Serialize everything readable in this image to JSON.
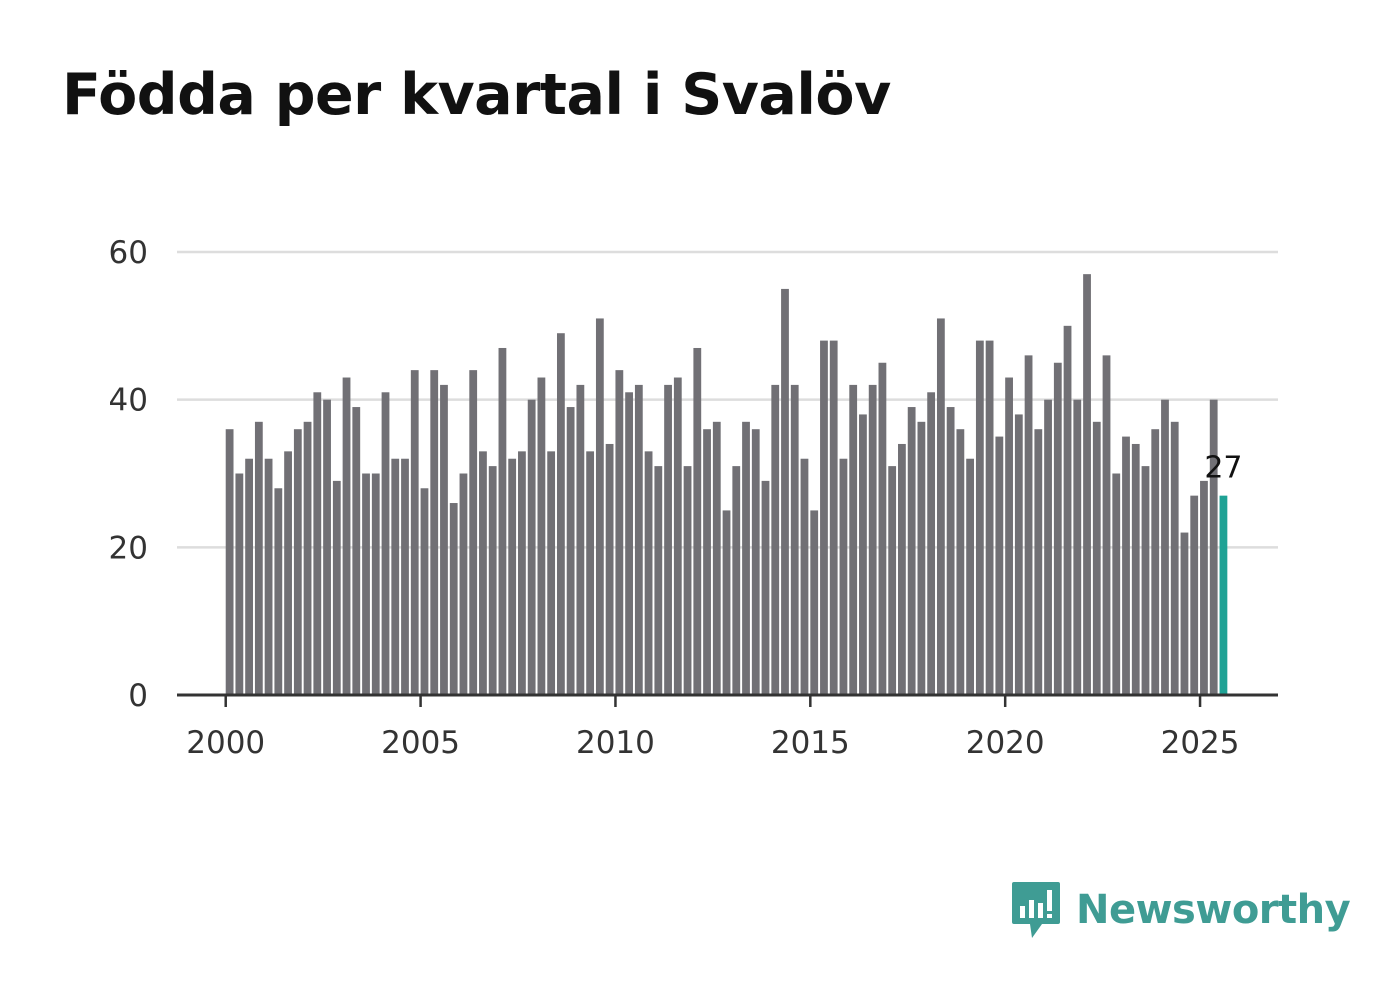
{
  "chart_data": {
    "type": "bar",
    "title": "Födda per kvartal i Svalöv",
    "xlabel": "",
    "ylabel": "",
    "ylim": [
      0,
      60
    ],
    "yticks": [
      0,
      20,
      40,
      60
    ],
    "xlim": [
      1998.75,
      2027.0
    ],
    "xticks": [
      2000,
      2005,
      2010,
      2015,
      2020,
      2025
    ],
    "x_start": 2000,
    "values_per_year": 4,
    "grid": true,
    "colors": {
      "bar": "#717075",
      "highlight": "#1fa295",
      "grid": "#dddddd",
      "axis": "#333333"
    },
    "values": [
      36,
      30,
      32,
      37,
      32,
      28,
      33,
      36,
      37,
      41,
      40,
      29,
      43,
      39,
      30,
      30,
      41,
      32,
      32,
      44,
      28,
      44,
      42,
      26,
      30,
      44,
      33,
      31,
      47,
      32,
      33,
      40,
      43,
      33,
      49,
      39,
      42,
      33,
      51,
      34,
      44,
      41,
      42,
      33,
      31,
      42,
      43,
      31,
      47,
      36,
      37,
      25,
      31,
      37,
      36,
      29,
      42,
      55,
      42,
      32,
      25,
      48,
      48,
      32,
      42,
      38,
      42,
      45,
      31,
      34,
      39,
      37,
      41,
      51,
      39,
      36,
      32,
      48,
      48,
      35,
      43,
      38,
      46,
      36,
      40,
      45,
      50,
      40,
      57,
      37,
      46,
      30,
      35,
      34,
      31,
      36,
      40,
      37,
      22,
      27,
      29,
      40,
      27
    ],
    "highlight_label": "27"
  },
  "brand": {
    "name": "Newsworthy",
    "icon": "newsworthy-logo-icon"
  }
}
